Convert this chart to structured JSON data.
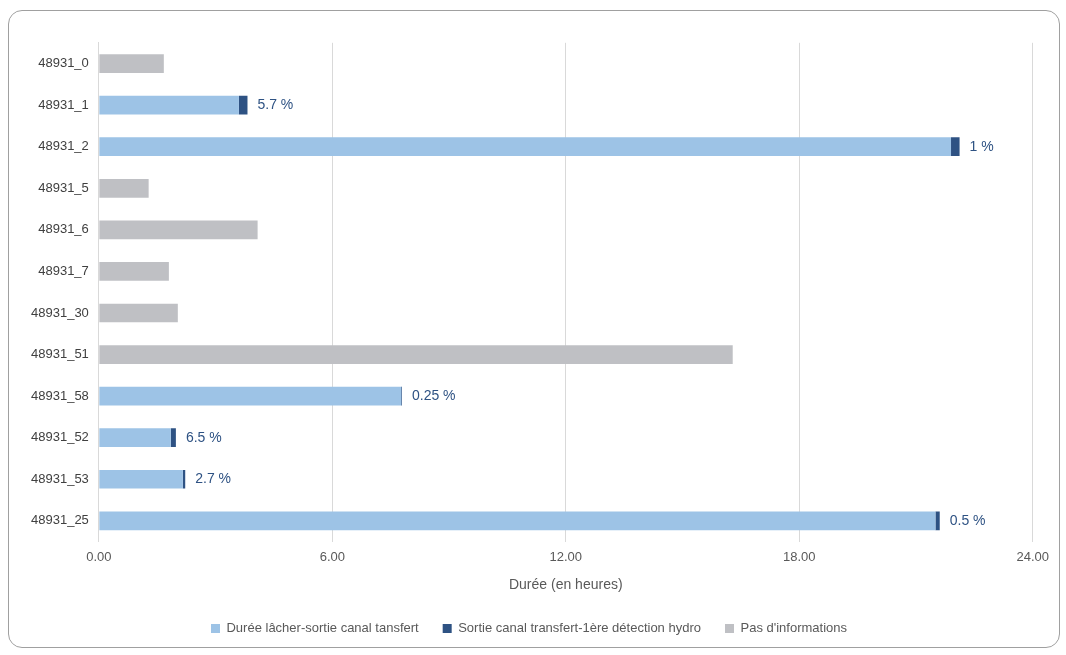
{
  "chart_data": {
    "type": "bar",
    "orientation": "horizontal",
    "stacked": true,
    "categories": [
      "48931_0",
      "48931_1",
      "48931_2",
      "48931_5",
      "48931_6",
      "48931_7",
      "48931_30",
      "48931_51",
      "48931_58",
      "48931_52",
      "48931_53",
      "48931_25"
    ],
    "series": [
      {
        "name": "Durée lâcher-sortie canal tansfert",
        "color": "#9dc3e6",
        "values": [
          null,
          3.6,
          21.9,
          null,
          null,
          null,
          null,
          null,
          7.77,
          1.85,
          2.16,
          21.5
        ]
      },
      {
        "name": "Sortie canal transfert-1ère détection hydro",
        "color": "#2e5283",
        "values": [
          null,
          0.22,
          0.22,
          null,
          null,
          null,
          null,
          null,
          0.02,
          0.13,
          0.06,
          0.11
        ]
      },
      {
        "name": "Pas d'informations",
        "color": "#bfc0c4",
        "values": [
          1.67,
          null,
          null,
          1.28,
          4.08,
          1.8,
          2.03,
          16.29,
          null,
          null,
          null,
          null
        ]
      }
    ],
    "xlabel": "Durée (en heures)",
    "xlim": [
      0,
      24
    ],
    "xticks": [
      {
        "value": 0,
        "label": "0.00"
      },
      {
        "value": 6,
        "label": "6.00"
      },
      {
        "value": 12,
        "label": "12.00"
      },
      {
        "value": 18,
        "label": "18.00"
      },
      {
        "value": 24,
        "label": "24.00"
      }
    ],
    "annotations": [
      {
        "text": "5.7 %",
        "x": 3.82,
        "y": "48931_1"
      },
      {
        "text": "1 %",
        "x": 22.12,
        "y": "48931_2"
      },
      {
        "text": "0.25 %",
        "x": 7.79,
        "y": "48931_58"
      },
      {
        "text": "6.5 %",
        "x": 1.98,
        "y": "48931_52"
      },
      {
        "text": "2.7 %",
        "x": 2.22,
        "y": "48931_53"
      },
      {
        "text": "0.5 %",
        "x": 21.61,
        "y": "48931_25"
      }
    ],
    "grid": "x",
    "legend": "bottom"
  }
}
